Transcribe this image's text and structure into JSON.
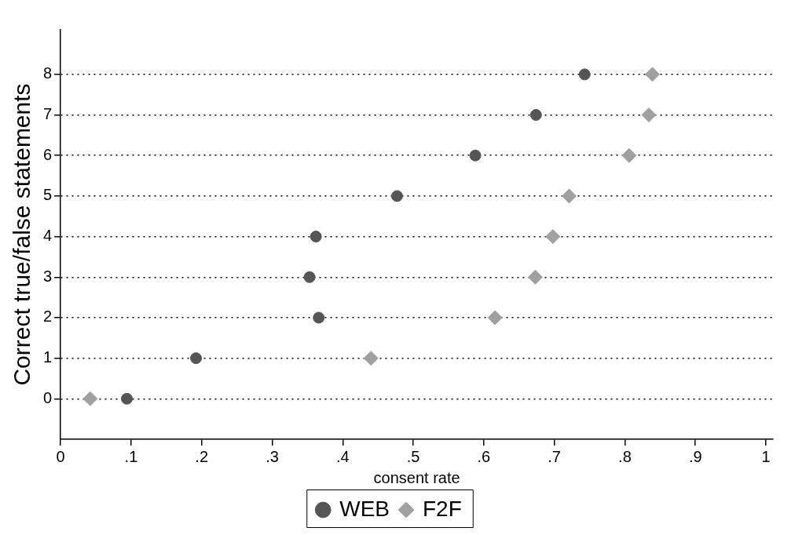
{
  "chart_data": {
    "type": "scatter",
    "xlabel": "consent rate",
    "ylabel": "Correct true/false statements",
    "xlim": [
      0,
      1.01
    ],
    "xticks": [
      0,
      {
        "value": 0.1,
        "label": ".1"
      },
      {
        "value": 0.2,
        "label": ".2"
      },
      {
        "value": 0.3,
        "label": ".3"
      },
      {
        "value": 0.4,
        "label": ".4"
      },
      {
        "value": 0.5,
        "label": ".5"
      },
      {
        "value": 0.6,
        "label": ".6"
      },
      {
        "value": 0.7,
        "label": ".7"
      },
      {
        "value": 0.8,
        "label": ".8"
      },
      {
        "value": 0.9,
        "label": ".9"
      },
      1
    ],
    "ylim": [
      -1,
      9.1
    ],
    "yticks": [
      0,
      1,
      2,
      3,
      4,
      5,
      6,
      7,
      8
    ],
    "grid": "y",
    "legend": "bottom",
    "series": [
      {
        "name": "WEB",
        "color": "#555555",
        "marker": "circle",
        "x": [
          0.094,
          0.192,
          0.366,
          0.353,
          0.362,
          0.477,
          0.588,
          0.674,
          0.743
        ],
        "values": [
          0,
          1,
          2,
          3,
          4,
          5,
          6,
          7,
          8
        ]
      },
      {
        "name": "F2F",
        "color": "#a0a0a0",
        "marker": "diamond",
        "x": [
          0.042,
          0.44,
          0.616,
          0.673,
          0.698,
          0.721,
          0.806,
          0.834,
          0.839
        ],
        "values": [
          0,
          1,
          2,
          3,
          4,
          5,
          6,
          7,
          8
        ]
      }
    ]
  }
}
